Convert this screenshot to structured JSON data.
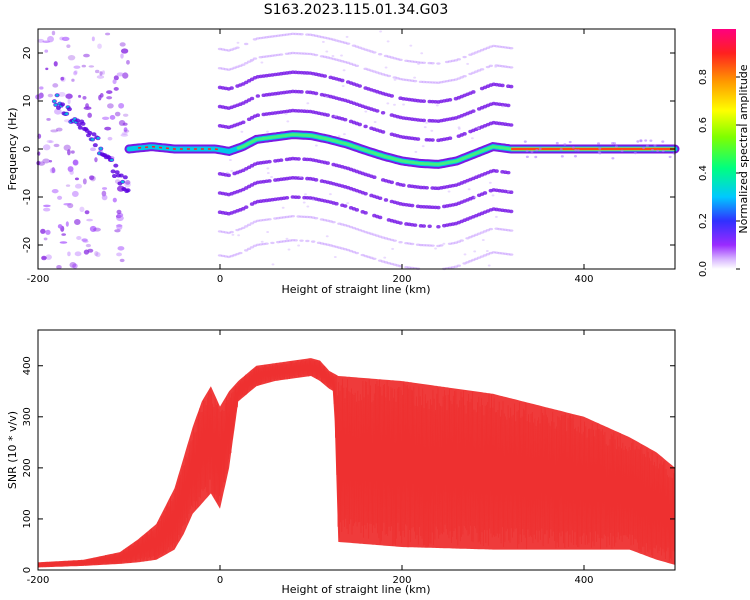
{
  "figure": {
    "title": "S163.2023.115.01.34.G03"
  },
  "chart_data": [
    {
      "type": "heatmap",
      "xlabel": "Height of straight line (km)",
      "ylabel": "Frequency (Hz)",
      "xlim": [
        -200,
        500
      ],
      "ylim": [
        -25,
        25
      ],
      "xticks": [
        -200,
        0,
        200,
        400
      ],
      "yticks": [
        -20,
        -10,
        0,
        10,
        20
      ],
      "colorbar": {
        "label": "Normalized spectral amplitude",
        "range": [
          0,
          1
        ],
        "ticks": [
          "0.0",
          "0.2",
          "0.4",
          "0.6",
          "0.8"
        ]
      },
      "grid": false,
      "main_ridge": {
        "x": [
          -100,
          -75,
          -50,
          -25,
          -5,
          10,
          25,
          40,
          60,
          80,
          100,
          120,
          140,
          160,
          180,
          200,
          220,
          240,
          260,
          280,
          300,
          320,
          340,
          400,
          500
        ],
        "y": [
          0,
          0.5,
          0,
          0,
          0,
          -0.5,
          0.5,
          2,
          2.5,
          3,
          2.8,
          2,
          1,
          -0.3,
          -1.5,
          -2.5,
          -3,
          -3.2,
          -2.5,
          -1,
          0.5,
          0,
          0,
          0,
          0
        ]
      },
      "scatter_descent": {
        "x": [
          -180,
          -170,
          -160,
          -150,
          -140,
          -130,
          -120,
          -110,
          -100
        ],
        "y": [
          10,
          8,
          6,
          4,
          2,
          0,
          -3,
          -6,
          -8
        ]
      },
      "sidebands": {
        "x_range": [
          0,
          320
        ],
        "offsets": [
          -22,
          -17,
          -13,
          -9,
          -5,
          5,
          9,
          13,
          17,
          21
        ]
      }
    },
    {
      "type": "line",
      "xlabel": "Height of straight line (km)",
      "ylabel": "SNR (10 * v/v)",
      "xlim": [
        -200,
        500
      ],
      "ylim": [
        0,
        470
      ],
      "xticks": [
        -200,
        0,
        200,
        400
      ],
      "yticks": [
        0,
        100,
        200,
        300,
        400
      ],
      "color": "#ee3030",
      "grid": false,
      "series": [
        {
          "upper": {
            "x": [
              -200,
              -150,
              -110,
              -90,
              -70,
              -50,
              -40,
              -30,
              -20,
              -10,
              0,
              10,
              20,
              40,
              60,
              80,
              100,
              110,
              120,
              130,
              200,
              300,
              400,
              450,
              480,
              500
            ],
            "y": [
              15,
              20,
              35,
              60,
              90,
              160,
              220,
              280,
              330,
              360,
              320,
              350,
              370,
              400,
              405,
              410,
              415,
              410,
              390,
              380,
              370,
              345,
              300,
              260,
              230,
              200
            ]
          },
          "lower": {
            "x": [
              -200,
              -150,
              -110,
              -90,
              -70,
              -50,
              -40,
              -30,
              -20,
              -10,
              0,
              10,
              20,
              40,
              60,
              80,
              100,
              110,
              120,
              125,
              130,
              200,
              300,
              400,
              450,
              480,
              500
            ],
            "y": [
              5,
              8,
              12,
              15,
              20,
              40,
              70,
              110,
              130,
              150,
              120,
              200,
              330,
              360,
              370,
              375,
              380,
              370,
              355,
              350,
              55,
              45,
              40,
              40,
              40,
              20,
              10
            ]
          }
        }
      ]
    }
  ]
}
